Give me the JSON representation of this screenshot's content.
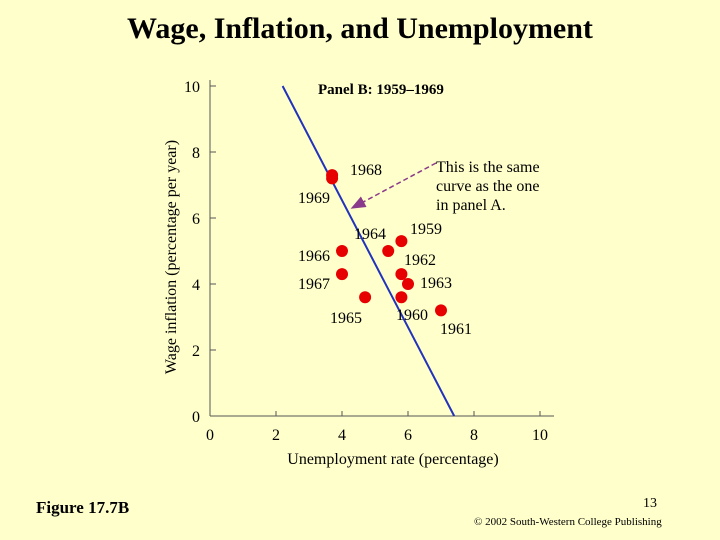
{
  "slide": {
    "title": "Wage, Inflation, and Unemployment",
    "figure_label": "Figure 17.7B",
    "page_number": "13",
    "copyright": "© 2002 South-Western College Publishing"
  },
  "colors": {
    "background": "#ffffcc",
    "curve": "#2233bb",
    "points": "#e60000",
    "arrow": "#8a3a8a",
    "axis": "#555555"
  },
  "chart_data": {
    "type": "scatter",
    "title": "Panel B: 1959–1969",
    "xlabel": "Unemployment rate (percentage)",
    "ylabel": "Wage inflation (percentage per year)",
    "xlim": [
      0,
      10
    ],
    "ylim": [
      0,
      10
    ],
    "x_ticks": [
      "0",
      "2",
      "4",
      "6",
      "8",
      "10"
    ],
    "y_ticks": [
      "0",
      "2",
      "4",
      "6",
      "8",
      "10"
    ],
    "grid": false,
    "points": [
      {
        "label": "1959",
        "x": 5.8,
        "y": 5.3
      },
      {
        "label": "1960",
        "x": 5.8,
        "y": 3.6
      },
      {
        "label": "1961",
        "x": 7.0,
        "y": 3.2
      },
      {
        "label": "1962",
        "x": 5.8,
        "y": 4.3
      },
      {
        "label": "1963",
        "x": 6.0,
        "y": 4.0
      },
      {
        "label": "1964",
        "x": 5.4,
        "y": 5.0
      },
      {
        "label": "1965",
        "x": 4.7,
        "y": 3.6
      },
      {
        "label": "1966",
        "x": 4.0,
        "y": 5.0
      },
      {
        "label": "1967",
        "x": 4.0,
        "y": 4.3
      },
      {
        "label": "1968",
        "x": 3.7,
        "y": 7.3
      },
      {
        "label": "1969",
        "x": 3.7,
        "y": 7.2
      }
    ],
    "curve": {
      "x": [
        2.2,
        7.4
      ],
      "y": [
        10.0,
        0.0
      ]
    },
    "annotation": {
      "lines": [
        "This is the same",
        "curve as the one",
        "in panel A."
      ],
      "arrow_to": {
        "x": 4.3,
        "y": 6.3
      }
    }
  }
}
